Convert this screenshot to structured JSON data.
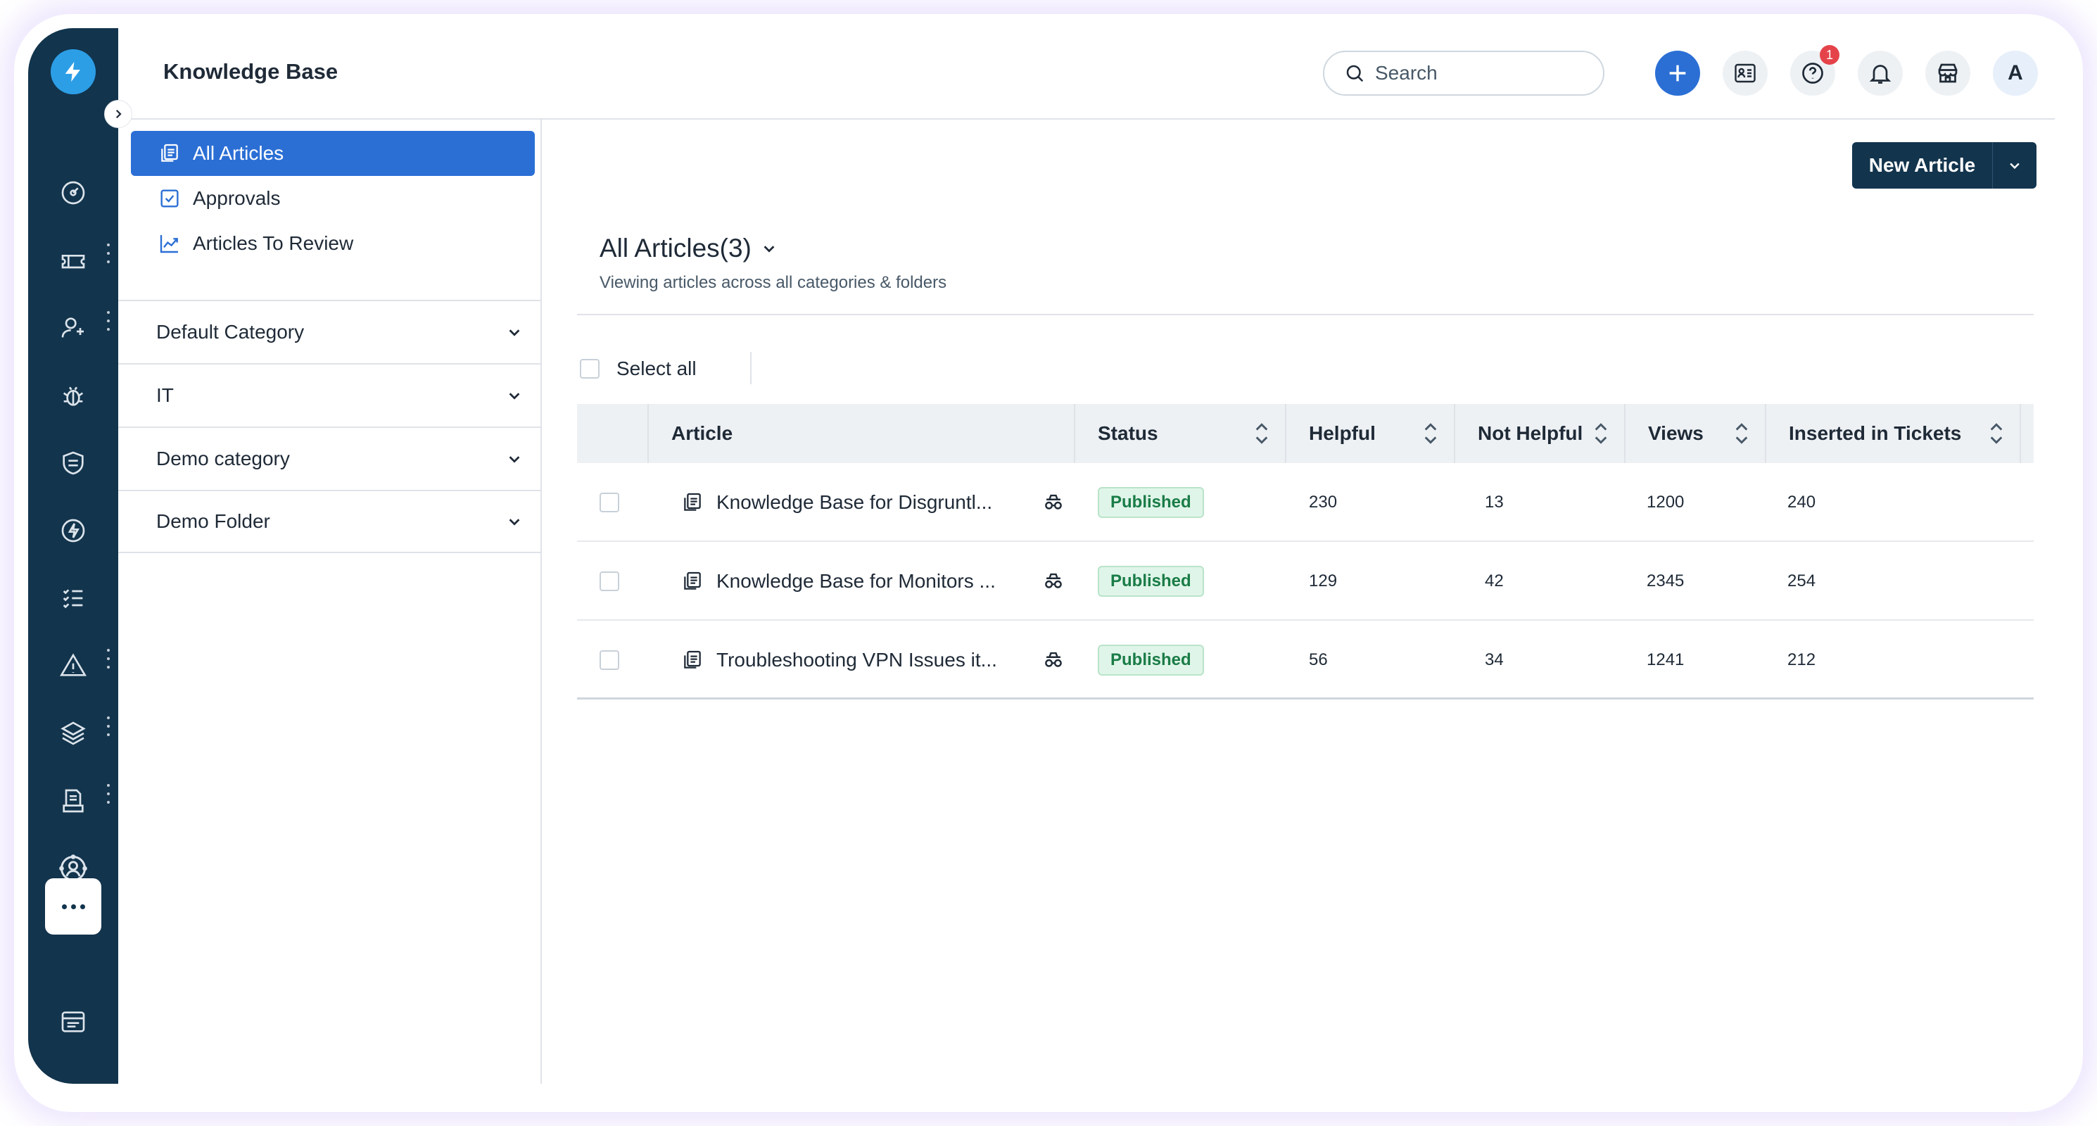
{
  "header": {
    "title": "Knowledge Base",
    "search_placeholder": "Search",
    "help_badge": "1",
    "avatar_initial": "A"
  },
  "rail": {
    "icons": [
      "dashboard-icon",
      "ticket-icon",
      "contacts-icon",
      "bug-icon",
      "shield-icon",
      "bolt-icon",
      "checklist-icon",
      "warning-icon",
      "layers-icon",
      "report-icon",
      "support-agent-icon",
      "more-icon",
      "panel-icon"
    ]
  },
  "sidebar": {
    "nav": [
      {
        "label": "All Articles",
        "icon": "articles-icon",
        "active": true
      },
      {
        "label": "Approvals",
        "icon": "checkbox-icon",
        "active": false
      },
      {
        "label": "Articles To Review",
        "icon": "trend-icon",
        "active": false
      }
    ],
    "categories": [
      {
        "label": "Default Category"
      },
      {
        "label": "IT"
      },
      {
        "label": "Demo category"
      },
      {
        "label": "Demo Folder"
      }
    ]
  },
  "main": {
    "new_article_label": "New Article",
    "view_title": "All Articles(3)",
    "view_subtitle": "Viewing articles across all categories & folders",
    "select_all_label": "Select all"
  },
  "table": {
    "columns": [
      "Article",
      "Status",
      "Helpful",
      "Not Helpful",
      "Views",
      "Inserted in Tickets"
    ],
    "rows": [
      {
        "title": "Knowledge Base for Disgruntl...",
        "status": "Published",
        "helpful": "230",
        "not_helpful": "13",
        "views": "1200",
        "inserted": "240"
      },
      {
        "title": "Knowledge Base for Monitors ...",
        "status": "Published",
        "helpful": "129",
        "not_helpful": "42",
        "views": "2345",
        "inserted": "254"
      },
      {
        "title": "Troubleshooting VPN Issues it...",
        "status": "Published",
        "helpful": "56",
        "not_helpful": "34",
        "views": "1241",
        "inserted": "212"
      }
    ]
  },
  "colors": {
    "rail_bg": "#12344d",
    "primary": "#2b6fd5",
    "published_text": "#1a7c47",
    "published_bg": "#e0f5e9"
  }
}
